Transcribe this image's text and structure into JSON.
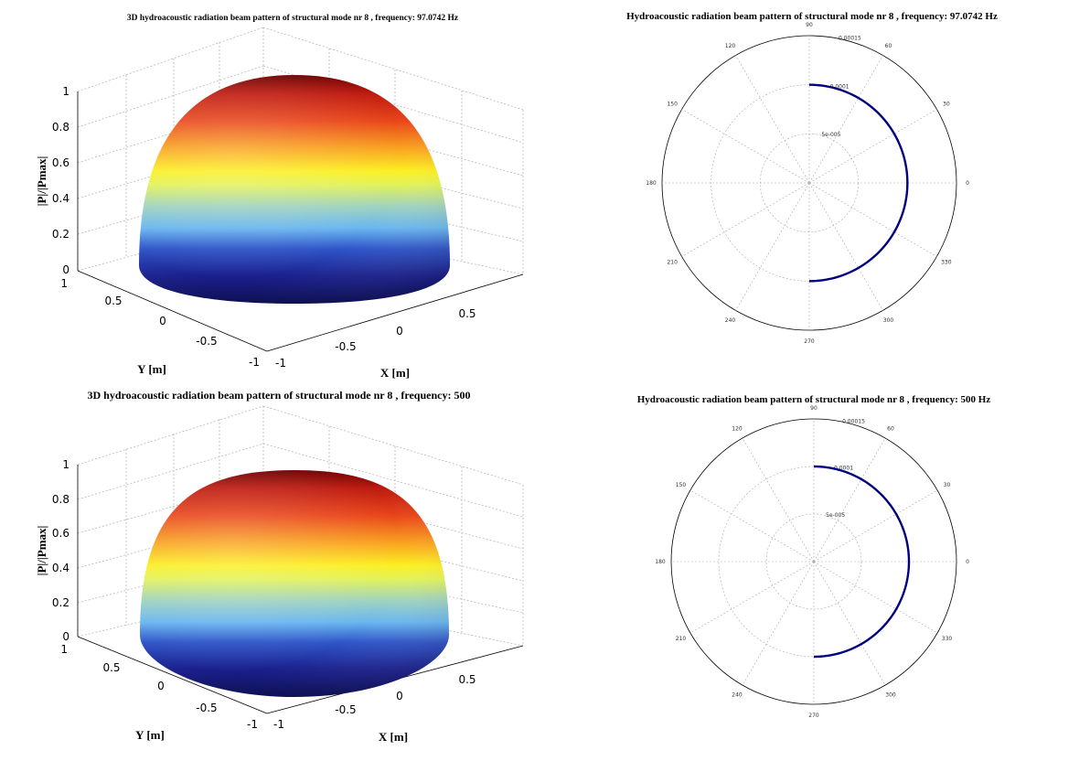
{
  "chart_data": [
    {
      "type": "surface",
      "title": "3D hydroacoustic radiation beam pattern of structural mode nr 8 , frequency: 97.0742 Hz",
      "xlabel": "X [m]",
      "ylabel": "Y [m]",
      "zlabel": "|P|/|Pmax|",
      "xlim": [
        -1,
        1
      ],
      "ylim": [
        -1,
        1
      ],
      "zlim": [
        0,
        1
      ],
      "xticks": [
        "-1",
        "-0.5",
        "0",
        "0.5"
      ],
      "yticks": [
        "-1",
        "-0.5",
        "0",
        "0.5",
        "1"
      ],
      "zticks": [
        "0",
        "0.2",
        "0.4",
        "0.6",
        "0.8",
        "1"
      ],
      "grid": true,
      "surface": "hemisphere, |P|/|Pmax| from 0 at base to 1 at top, jet colormap"
    },
    {
      "type": "polar",
      "title": "Hydroacoustic radiation beam pattern of structural mode nr 8 , frequency: 97.0742 Hz",
      "angle_ticks": [
        "0",
        "30",
        "60",
        "90",
        "120",
        "150",
        "180",
        "210",
        "240",
        "270",
        "300",
        "330"
      ],
      "radial_ticks": [
        "5e-005",
        "0.0001",
        "0.00015"
      ],
      "rmax": 0.00015,
      "series": [
        {
          "theta_deg": [
            -90,
            90
          ],
          "r": 0.0001,
          "color": "#000080"
        }
      ]
    },
    {
      "type": "surface",
      "title": "3D hydroacoustic radiation beam pattern of structural mode nr 8 , frequency: 500",
      "xlabel": "X [m]",
      "ylabel": "Y [m]",
      "zlabel": "|P|/|Pmax|",
      "xlim": [
        -1,
        1
      ],
      "ylim": [
        -1,
        1
      ],
      "zlim": [
        0,
        1
      ],
      "xticks": [
        "-1",
        "-0.5",
        "0",
        "0.5"
      ],
      "yticks": [
        "-1",
        "-0.5",
        "0",
        "0.5",
        "1"
      ],
      "zticks": [
        "0",
        "0.2",
        "0.4",
        "0.6",
        "0.8",
        "1"
      ],
      "grid": true,
      "surface": "hemisphere, |P|/|Pmax| from 0 at base to 1 at top, jet colormap"
    },
    {
      "type": "polar",
      "title": "Hydroacoustic radiation beam pattern of structural mode nr 8 , frequency: 500 Hz",
      "angle_ticks": [
        "0",
        "30",
        "60",
        "90",
        "120",
        "150",
        "180",
        "210",
        "240",
        "270",
        "300",
        "330"
      ],
      "radial_ticks": [
        "5e-005",
        "0.0001",
        "0.00015"
      ],
      "rmax": 0.00015,
      "series": [
        {
          "theta_deg": [
            -90,
            90
          ],
          "r": 0.0001,
          "color": "#000080"
        }
      ]
    }
  ]
}
